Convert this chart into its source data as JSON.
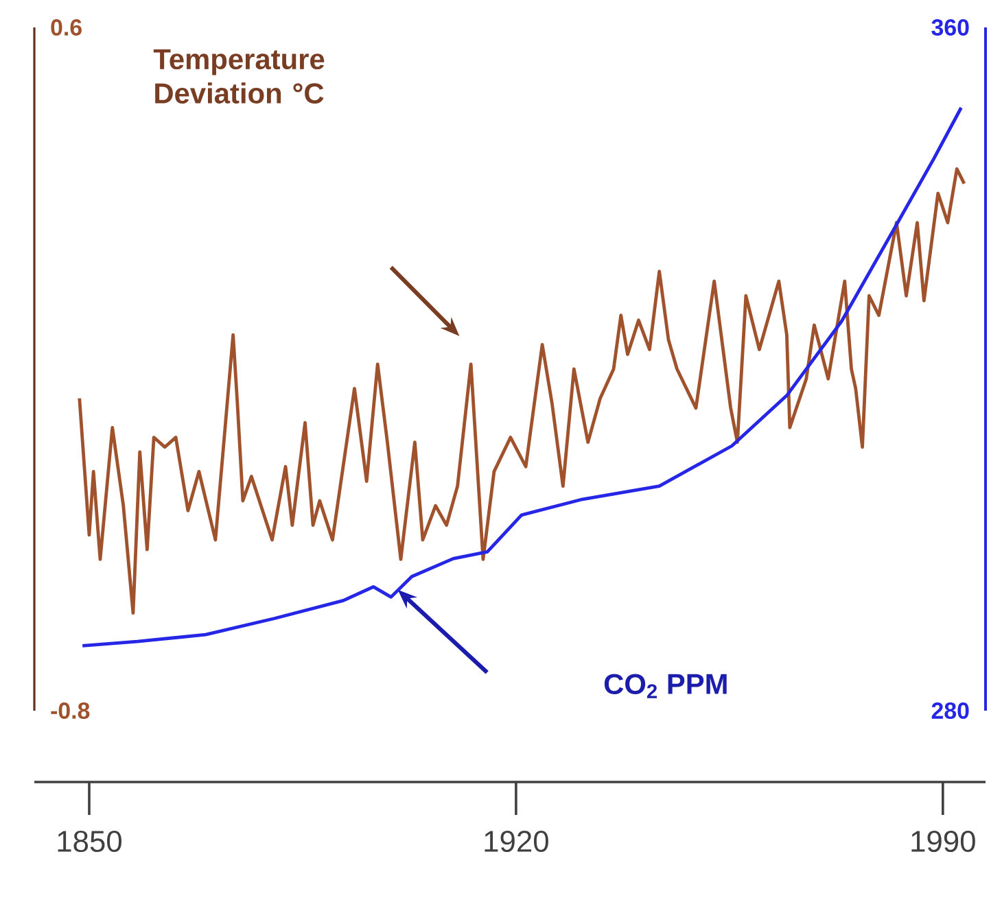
{
  "chart_data": {
    "type": "line",
    "xlim": [
      1841,
      1997
    ],
    "xticks": [
      1850,
      1920,
      1990
    ],
    "ylim": [
      -0.8,
      0.6
    ],
    "yticks": [
      -0.8,
      0.6
    ],
    "y2lim": [
      280,
      360
    ],
    "y2ticks": [
      280,
      360
    ],
    "annotations": [
      "Temperature Deviation °C",
      "CO$_{2}$ PPM"
    ],
    "series": [
      {
        "color": "#a0522d",
        "x": [
          1848.4,
          1850.0,
          1850.7,
          1851.8,
          1853.8,
          1855.6,
          1857.2,
          1858.3,
          1859.5,
          1860.6,
          1862.4,
          1864.2,
          1866.2,
          1868.0,
          1870.7,
          1873.6,
          1874.3,
          1875.2,
          1876.6,
          1880.0,
          1882.2,
          1883.3,
          1885.4,
          1886.7,
          1887.8,
          1889.9,
          1893.5,
          1895.5,
          1897.3,
          1898.9,
          1901.1,
          1903.4,
          1904.7,
          1906.8,
          1908.6,
          1910.4,
          1912.6,
          1914.6,
          1916.4,
          1919.1,
          1921.6,
          1924.3,
          1925.9,
          1927.7,
          1929.5,
          1931.8,
          1933.8,
          1936.0,
          1937.2,
          1938.3,
          1940.1,
          1941.9,
          1943.5,
          1945.0,
          1946.4,
          1949.5,
          1952.5,
          1955.2,
          1956.3,
          1957.7,
          1959.9,
          1963.1,
          1964.4,
          1964.9,
          1967.6,
          1968.9,
          1971.2,
          1973.9,
          1975.0,
          1975.7,
          1976.8,
          1977.9,
          1979.5,
          1982.4,
          1984.0,
          1985.8,
          1986.9,
          1989.2,
          1990.8,
          1992.3,
          1993.5
        ],
        "values": [
          -0.16,
          -0.44,
          -0.31,
          -0.49,
          -0.22,
          -0.38,
          -0.6,
          -0.27,
          -0.47,
          -0.24,
          -0.26,
          -0.24,
          -0.39,
          -0.31,
          -0.45,
          -0.03,
          -0.17,
          -0.37,
          -0.32,
          -0.45,
          -0.3,
          -0.42,
          -0.21,
          -0.42,
          -0.37,
          -0.45,
          -0.14,
          -0.33,
          -0.09,
          -0.25,
          -0.49,
          -0.25,
          -0.45,
          -0.38,
          -0.42,
          -0.34,
          -0.09,
          -0.49,
          -0.31,
          -0.24,
          -0.3,
          -0.05,
          -0.17,
          -0.34,
          -0.1,
          -0.25,
          -0.16,
          -0.1,
          0.01,
          -0.07,
          0.0,
          -0.06,
          0.1,
          -0.04,
          -0.1,
          -0.18,
          0.08,
          -0.18,
          -0.25,
          0.05,
          -0.06,
          0.08,
          -0.03,
          -0.22,
          -0.12,
          -0.01,
          -0.12,
          0.08,
          -0.1,
          -0.14,
          -0.26,
          0.05,
          0.01,
          0.2,
          0.05,
          0.2,
          0.04,
          0.26,
          0.2,
          0.31,
          0.28
        ]
      },
      {
        "color": "#2626e6",
        "axis": "y2",
        "x": [
          1848.9,
          1857.9,
          1869.1,
          1880.4,
          1891.7,
          1896.6,
          1899.5,
          1902.9,
          1909.7,
          1915.3,
          1920.9,
          1930.6,
          1943.5,
          1955.4,
          1964.4,
          1973.4,
          1982.4,
          1988.5,
          1993.0
        ],
        "values": [
          287.6,
          288.1,
          288.9,
          290.8,
          292.9,
          294.5,
          293.3,
          295.7,
          297.8,
          298.6,
          302.9,
          304.7,
          306.3,
          311.0,
          316.9,
          325.6,
          336.9,
          344.6,
          350.6
        ]
      }
    ]
  }
}
